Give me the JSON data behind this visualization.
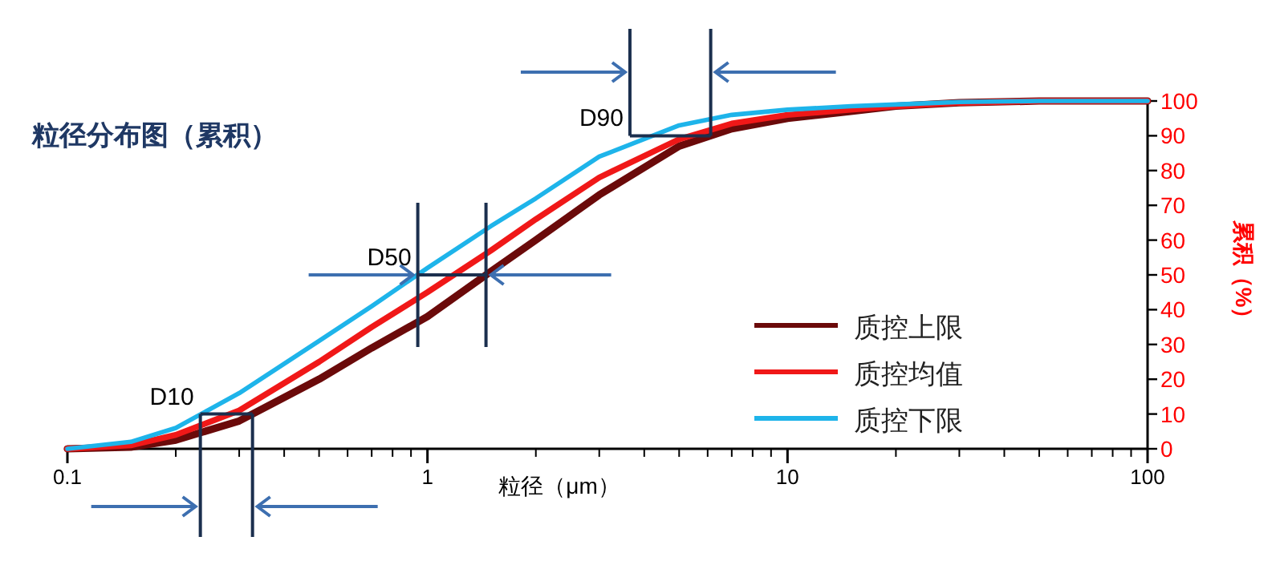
{
  "chart_data": {
    "type": "line",
    "title": "粒径分布图（累积）",
    "xlabel": "粒径（μm）",
    "ylabel": "累积（%）",
    "log": "x",
    "x": [
      0.1,
      0.15,
      0.2,
      0.3,
      0.5,
      0.7,
      1,
      1.5,
      2,
      3,
      5,
      7,
      10,
      15,
      20,
      30,
      50,
      100
    ],
    "series": [
      {
        "name": "质控上限",
        "color": "#6b0a0a",
        "values": [
          0,
          0.5,
          2.5,
          8,
          20,
          29,
          38,
          51,
          60,
          73,
          87,
          92,
          95,
          97,
          98.5,
          99.5,
          100,
          100
        ]
      },
      {
        "name": "质控均值",
        "color": "#f01818",
        "values": [
          0,
          1,
          4,
          11,
          25,
          35,
          45,
          57,
          66,
          78,
          89,
          93.5,
          96,
          97.5,
          98.5,
          99.5,
          100,
          100
        ]
      },
      {
        "name": "质控下限",
        "color": "#1eb4ea",
        "values": [
          0,
          2,
          6,
          16,
          31,
          41,
          52,
          64,
          72,
          84,
          93,
          96,
          97.5,
          98.5,
          99,
          99.7,
          100,
          100
        ]
      }
    ],
    "xlim": [
      0.1,
      100
    ],
    "xticks": [
      0.1,
      1,
      10,
      100
    ],
    "ylim": [
      0,
      100
    ],
    "yticks": [
      0,
      10,
      20,
      30,
      40,
      50,
      60,
      70,
      80,
      90,
      100
    ],
    "annotations": [
      {
        "text": "D10",
        "x": 0.234,
        "y": 10
      },
      {
        "text": "D50",
        "x": 0.94,
        "y": 50
      },
      {
        "text": "D90",
        "x": 3.65,
        "y": 90
      }
    ],
    "legend": "bottom right",
    "grid": false
  }
}
